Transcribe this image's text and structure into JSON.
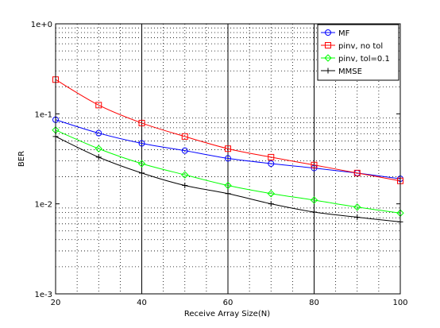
{
  "chart_data": {
    "type": "line",
    "xlabel": "Receive Array Size(N)",
    "ylabel": "BER",
    "xlim": [
      20,
      100
    ],
    "ylim": [
      0.001,
      1
    ],
    "yscale": "log",
    "grid": true,
    "legend_position": "top-right",
    "x_ticks": [
      20,
      40,
      60,
      80,
      100
    ],
    "x_tick_labels": [
      "20",
      "40",
      "60",
      "80",
      "100"
    ],
    "y_ticks": [
      0.001,
      0.01,
      0.1,
      1
    ],
    "y_tick_labels": [
      "1e-3",
      "1e-2",
      "1e-1",
      "1e+0"
    ],
    "x": [
      20,
      30,
      40,
      50,
      60,
      70,
      80,
      90,
      100
    ],
    "series": [
      {
        "name": "MF",
        "color": "#0000ff",
        "marker": "circle",
        "values": [
          0.086,
          0.061,
          0.047,
          0.039,
          0.032,
          0.028,
          0.025,
          0.022,
          0.019
        ]
      },
      {
        "name": "pinv, no tol",
        "color": "#ff0000",
        "marker": "square",
        "values": [
          0.24,
          0.125,
          0.079,
          0.056,
          0.041,
          0.033,
          0.027,
          0.022,
          0.018
        ]
      },
      {
        "name": "pinv, tol=0.1",
        "color": "#00ff00",
        "marker": "diamond",
        "values": [
          0.066,
          0.041,
          0.028,
          0.021,
          0.016,
          0.013,
          0.011,
          0.0092,
          0.0079
        ]
      },
      {
        "name": "MMSE",
        "color": "#000000",
        "marker": "plus",
        "values": [
          0.056,
          0.033,
          0.022,
          0.016,
          0.013,
          0.01,
          0.0081,
          0.0071,
          0.0063
        ]
      }
    ]
  }
}
